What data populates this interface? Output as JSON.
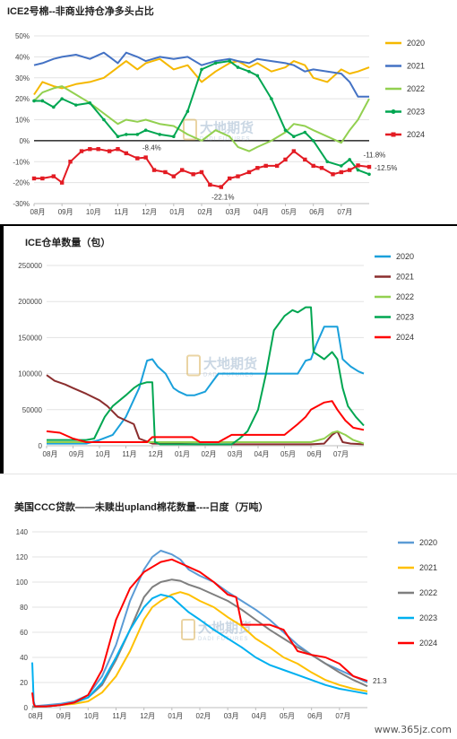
{
  "chart_data": [
    {
      "type": "line",
      "title": "ICE2号棉--非商业持仓净多头占比",
      "x_labels": [
        "08月",
        "09月",
        "10月",
        "11月",
        "12月",
        "01月",
        "02月",
        "03月",
        "04月",
        "05月",
        "06月",
        "07月"
      ],
      "ylim": [
        -30,
        50
      ],
      "y_ticks": [
        "-30%",
        "-20%",
        "-10%",
        "0%",
        "10%",
        "20%",
        "30%",
        "40%",
        "50%"
      ],
      "y_tick_values": [
        -30,
        -20,
        -10,
        0,
        10,
        20,
        30,
        40,
        50
      ],
      "x_domain": [
        0,
        12
      ],
      "series": [
        {
          "name": "2020",
          "color": "#F5B800",
          "marker": "none",
          "x": [
            0,
            0.3,
            0.7,
            1,
            1.5,
            2,
            2.5,
            3,
            3.3,
            3.7,
            4,
            4.5,
            5,
            5.5,
            6,
            6.5,
            7,
            7.3,
            7.7,
            8,
            8.5,
            9,
            9.3,
            9.7,
            10,
            10.5,
            11,
            11.3,
            11.6,
            12
          ],
          "y": [
            22,
            28,
            26,
            25,
            27,
            28,
            30,
            35,
            38,
            34,
            37,
            39,
            34,
            36,
            28,
            33,
            37,
            38,
            35,
            37,
            33,
            35,
            38,
            36,
            30,
            28,
            34,
            32,
            33,
            35
          ]
        },
        {
          "name": "2021",
          "color": "#4472C4",
          "marker": "none",
          "x": [
            0,
            0.3,
            0.7,
            1,
            1.5,
            2,
            2.5,
            3,
            3.3,
            3.7,
            4,
            4.5,
            5,
            5.5,
            6,
            6.5,
            7,
            7.3,
            7.7,
            8,
            8.5,
            9,
            9.3,
            9.7,
            10,
            10.5,
            11,
            11.3,
            11.6,
            12
          ],
          "y": [
            36,
            37,
            39,
            40,
            41,
            39,
            42,
            37,
            42,
            40,
            38,
            40,
            39,
            40,
            36,
            38,
            39,
            38,
            37,
            39,
            38,
            37,
            36,
            33,
            34,
            33,
            32,
            28,
            21,
            21
          ]
        },
        {
          "name": "2022",
          "color": "#92D050",
          "marker": "none",
          "x": [
            0,
            0.3,
            0.7,
            1,
            1.5,
            2,
            2.5,
            3,
            3.3,
            3.7,
            4,
            4.5,
            5,
            5.5,
            6,
            6.5,
            7,
            7.3,
            7.7,
            8,
            8.5,
            9,
            9.3,
            9.7,
            10,
            10.5,
            11,
            11.3,
            11.6,
            12
          ],
          "y": [
            19,
            23,
            25,
            26,
            22,
            18,
            13,
            8,
            10,
            9,
            10,
            8,
            7,
            3,
            0,
            5,
            2,
            -3,
            -5,
            -3,
            0,
            4,
            8,
            7,
            5,
            2,
            -1,
            5,
            10,
            20
          ]
        },
        {
          "name": "2023",
          "color": "#00A651",
          "marker": "dot",
          "x": [
            0,
            0.3,
            0.7,
            1,
            1.5,
            2,
            2.5,
            3,
            3.3,
            3.7,
            4,
            4.5,
            5,
            5.5,
            6,
            6.5,
            7,
            7.3,
            7.7,
            8,
            8.5,
            9,
            9.3,
            9.7,
            10,
            10.5,
            11,
            11.3,
            11.6,
            12
          ],
          "y": [
            19,
            19,
            16,
            20,
            17,
            18,
            10,
            2,
            3,
            3,
            5,
            3,
            2,
            14,
            34,
            37,
            38,
            35,
            33,
            31,
            20,
            5,
            2,
            4,
            0,
            -10,
            -12,
            -9,
            -14,
            -16
          ]
        },
        {
          "name": "2024",
          "color": "#E31B23",
          "marker": "square",
          "x": [
            0,
            0.3,
            0.7,
            1,
            1.3,
            1.7,
            2,
            2.3,
            2.7,
            3,
            3.3,
            3.7,
            4,
            4.3,
            4.7,
            5,
            5.3,
            5.7,
            6,
            6.3,
            6.7,
            7,
            7.3,
            7.7,
            8,
            8.3,
            8.7,
            9,
            9.3,
            9.7,
            10,
            10.3,
            10.7,
            11,
            11.3,
            11.6,
            12
          ],
          "y": [
            -18,
            -18,
            -17,
            -20,
            -10,
            -5,
            -4,
            -4,
            -5,
            -4,
            -6,
            -8.4,
            -8,
            -14,
            -15,
            -17,
            -14,
            -16,
            -15,
            -21,
            -22.1,
            -18,
            -17,
            -15,
            -13,
            -12,
            -12,
            -9,
            -5,
            -9,
            -12,
            -13,
            -16,
            -15,
            -14,
            -11.8,
            -12.5
          ]
        }
      ],
      "annotations": [
        {
          "text": "-8.4%",
          "x": 3.7,
          "y": -8.4
        },
        {
          "text": "-22.1%",
          "x": 6.7,
          "y": -22.1
        },
        {
          "text": "-11.8%",
          "x": 11.6,
          "y": -11.8
        },
        {
          "text": "-12.5%",
          "x": 12,
          "y": -12.5
        }
      ],
      "zero_line": true,
      "grid": true,
      "legend": "right"
    },
    {
      "type": "line",
      "title": "ICE仓单数量（包）",
      "x_labels": [
        "08月",
        "09月",
        "10月",
        "11月",
        "12月",
        "01月",
        "02月",
        "03月",
        "04月",
        "05月",
        "06月",
        "07月"
      ],
      "ylim": [
        0,
        250000
      ],
      "y_ticks": [
        "0",
        "50000",
        "100000",
        "150000",
        "200000",
        "250000"
      ],
      "y_tick_values": [
        0,
        50000,
        100000,
        150000,
        200000,
        250000
      ],
      "x_domain": [
        0,
        12
      ],
      "series": [
        {
          "name": "2020",
          "color": "#1AA0DB",
          "x": [
            0,
            0.5,
            1,
            1.5,
            2,
            2.5,
            3,
            3.5,
            3.8,
            4,
            4.2,
            4.5,
            4.8,
            5,
            5.3,
            5.6,
            6,
            6.3,
            6.5,
            7,
            7.5,
            8,
            8.5,
            9,
            9.5,
            9.8,
            10,
            10.2,
            10.5,
            10.8,
            11,
            11.2,
            11.5,
            11.8,
            12
          ],
          "x_note": "",
          "y": [
            3000,
            3000,
            3000,
            3000,
            8000,
            15000,
            40000,
            80000,
            118000,
            120000,
            110000,
            100000,
            80000,
            75000,
            70000,
            70000,
            75000,
            90000,
            100000,
            100000,
            100000,
            100000,
            100000,
            100000,
            100000,
            118000,
            120000,
            140000,
            165000,
            165000,
            165000,
            120000,
            110000,
            103000,
            100000
          ]
        },
        {
          "name": "2021",
          "color": "#8B2E2E",
          "x": [
            0,
            0.3,
            0.7,
            1,
            1.5,
            2,
            2.3,
            2.7,
            3,
            3.3,
            3.5,
            4,
            6,
            8,
            10,
            10.5,
            10.8,
            11,
            11.2,
            11.5,
            12
          ],
          "y": [
            98000,
            90000,
            85000,
            80000,
            72000,
            63000,
            55000,
            40000,
            35000,
            30000,
            10000,
            3000,
            2000,
            2000,
            2000,
            3000,
            15000,
            20000,
            5000,
            3000,
            2000
          ]
        },
        {
          "name": "2022",
          "color": "#92D050",
          "x": [
            0,
            1,
            2,
            3,
            4,
            5,
            6,
            7,
            8,
            9,
            10,
            10.5,
            10.8,
            11,
            11.3,
            11.6,
            12
          ],
          "y": [
            5000,
            5000,
            5000,
            5000,
            5000,
            5000,
            5000,
            5000,
            5000,
            5000,
            5000,
            10000,
            18000,
            20000,
            15000,
            8000,
            3000
          ]
        },
        {
          "name": "2023",
          "color": "#00A651",
          "x": [
            0,
            0.5,
            1,
            1.5,
            1.8,
            2,
            2.2,
            2.5,
            3,
            3.3,
            3.5,
            3.8,
            4,
            4.1,
            4.3,
            5,
            6,
            7,
            7.3,
            7.6,
            8,
            8.3,
            8.6,
            9,
            9.3,
            9.5,
            9.8,
            10,
            10.1,
            10.3,
            10.5,
            10.8,
            11,
            11.2,
            11.4,
            11.7,
            12
          ],
          "y": [
            8000,
            8000,
            8000,
            8000,
            10000,
            25000,
            40000,
            55000,
            70000,
            80000,
            85000,
            88000,
            88000,
            5000,
            2000,
            2000,
            2000,
            2000,
            10000,
            20000,
            50000,
            100000,
            160000,
            180000,
            188000,
            185000,
            192000,
            192000,
            130000,
            125000,
            120000,
            130000,
            120000,
            80000,
            55000,
            40000,
            28000
          ]
        },
        {
          "name": "2024",
          "color": "#FF0000",
          "x": [
            0,
            0.5,
            1,
            1.5,
            2,
            3,
            3.5,
            3.8,
            4,
            4.2,
            4.5,
            5,
            5.5,
            5.8,
            6,
            6.5,
            7,
            7.5,
            8,
            8.5,
            9,
            9.5,
            9.8,
            10,
            10.5,
            10.8,
            11,
            11.3,
            11.6,
            12
          ],
          "y": [
            20000,
            18000,
            10000,
            5000,
            5000,
            5000,
            5000,
            5000,
            12000,
            12000,
            12000,
            12000,
            12000,
            5000,
            5000,
            5000,
            15000,
            15000,
            15000,
            15000,
            15000,
            30000,
            40000,
            50000,
            60000,
            62000,
            50000,
            35000,
            25000,
            22000
          ]
        }
      ],
      "grid": true,
      "legend": "right"
    },
    {
      "type": "line",
      "title": "美国CCC贷款——未赎出upland棉花数量----日度（万吨）",
      "x_labels": [
        "08月",
        "09月",
        "10月",
        "11月",
        "12月",
        "01月",
        "02月",
        "03月",
        "04月",
        "05月",
        "06月",
        "07月"
      ],
      "ylim": [
        0,
        140
      ],
      "y_ticks": [
        "0",
        "20",
        "40",
        "60",
        "80",
        "100",
        "120",
        "140"
      ],
      "y_tick_values": [
        0,
        20,
        40,
        60,
        80,
        100,
        120,
        140
      ],
      "x_domain": [
        0,
        12
      ],
      "series": [
        {
          "name": "2020",
          "color": "#5B9BD5",
          "x": [
            0,
            0.5,
            1,
            1.5,
            2,
            2.5,
            3,
            3.5,
            4,
            4.3,
            4.6,
            5,
            5.3,
            5.6,
            6,
            6.5,
            7,
            7.5,
            8,
            8.5,
            9,
            9.5,
            10,
            10.5,
            11,
            11.5,
            12
          ],
          "y": [
            1,
            2,
            3,
            5,
            10,
            25,
            50,
            85,
            110,
            120,
            125,
            122,
            118,
            110,
            105,
            100,
            92,
            85,
            78,
            70,
            60,
            50,
            42,
            35,
            30,
            25,
            20
          ]
        },
        {
          "name": "2021",
          "color": "#FFC000",
          "x": [
            0,
            0.5,
            1,
            1.5,
            2,
            2.5,
            3,
            3.5,
            4,
            4.3,
            4.6,
            5,
            5.3,
            5.6,
            6,
            6.5,
            7,
            7.5,
            8,
            8.5,
            9,
            9.5,
            10,
            10.5,
            11,
            11.5,
            12
          ],
          "y": [
            0.5,
            1,
            2,
            3,
            5,
            12,
            25,
            45,
            70,
            80,
            85,
            90,
            92,
            90,
            85,
            80,
            72,
            65,
            55,
            48,
            40,
            35,
            28,
            22,
            18,
            15,
            13
          ]
        },
        {
          "name": "2022",
          "color": "#7F7F7F",
          "x": [
            0,
            0.5,
            1,
            1.5,
            2,
            2.5,
            3,
            3.5,
            4,
            4.3,
            4.6,
            5,
            5.3,
            5.6,
            6,
            6.5,
            7,
            7.5,
            8,
            8.5,
            9,
            9.5,
            10,
            10.5,
            11,
            11.5,
            12
          ],
          "y": [
            0.5,
            1,
            2,
            4,
            8,
            18,
            38,
            62,
            88,
            96,
            100,
            102,
            101,
            98,
            95,
            90,
            85,
            78,
            70,
            62,
            55,
            48,
            42,
            35,
            28,
            22,
            17
          ]
        },
        {
          "name": "2023",
          "color": "#00B0F0",
          "x": [
            0,
            0.05,
            0.1,
            0.5,
            1,
            1.5,
            2,
            2.5,
            3,
            3.5,
            4,
            4.3,
            4.6,
            5,
            5.3,
            5.6,
            6,
            6.5,
            7,
            7.5,
            8,
            8.5,
            9,
            9.5,
            10,
            10.5,
            11,
            11.5,
            12
          ],
          "y": [
            36,
            5,
            1,
            1,
            2,
            4,
            8,
            20,
            40,
            62,
            80,
            87,
            90,
            88,
            82,
            76,
            70,
            62,
            55,
            48,
            40,
            34,
            30,
            26,
            22,
            18,
            15,
            13,
            11
          ]
        },
        {
          "name": "2024",
          "color": "#FF0000",
          "x": [
            0,
            0.05,
            0.1,
            0.5,
            1,
            1.5,
            2,
            2.5,
            3,
            3.5,
            4,
            4.3,
            4.6,
            5,
            5.3,
            5.6,
            6,
            6.5,
            7,
            7.3,
            7.5,
            8,
            8.5,
            9,
            9.5,
            10,
            10.5,
            11,
            11.5,
            12
          ],
          "y": [
            12,
            3,
            1,
            1,
            2,
            4,
            10,
            30,
            70,
            95,
            108,
            112,
            116,
            118,
            115,
            112,
            108,
            100,
            90,
            88,
            66,
            66,
            66,
            62,
            45,
            42,
            40,
            35,
            25,
            21.3
          ]
        }
      ],
      "annotations": [
        {
          "text": "21.3",
          "x": 12,
          "y": 21.3
        }
      ],
      "grid": true,
      "legend": "right"
    }
  ],
  "watermark": {
    "text": "大地期货",
    "sub": "DADI FUTURES"
  },
  "site_label": "www.365jz.com"
}
